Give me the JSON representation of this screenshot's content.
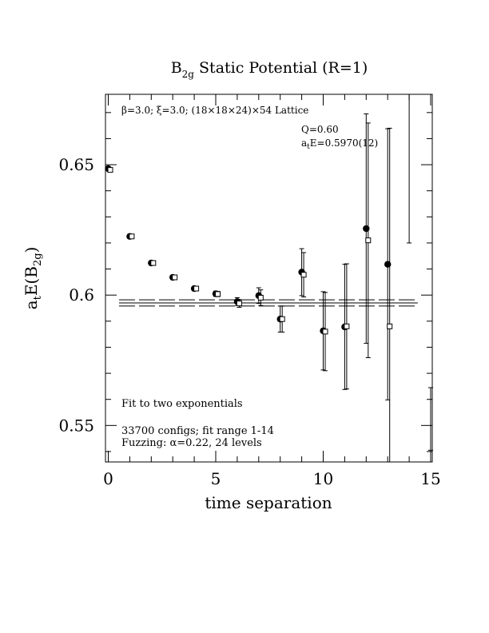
{
  "chart_data": {
    "type": "scatter",
    "title": {
      "main": "B",
      "sub": "2g",
      "rest": " Static Potential (R=1)"
    },
    "xlabel": "time separation",
    "ylabel": {
      "pre": "a",
      "pre_sub": "t",
      "mid": "E(B",
      "mid_sub": "2g",
      "post": ")"
    },
    "xlim": [
      0,
      15
    ],
    "ylim": [
      0.536,
      0.677
    ],
    "x_ticks": [
      0,
      5,
      10,
      15
    ],
    "x_tick_labels": [
      "0",
      "5",
      "10",
      "15"
    ],
    "y_ticks": [
      0.55,
      0.6,
      0.65
    ],
    "y_tick_labels": [
      "0.55",
      "0.6",
      "0.65"
    ],
    "x_minor_step": 1,
    "y_minor_step": 0.01,
    "annotations": {
      "lattice": "β=3.0; ξ=3.0; (18×18×24)×54 Lattice",
      "q": "Q=0.60",
      "energy_pre": "a",
      "energy_sub": "t",
      "energy_post": "E=0.5970(12)",
      "fit": "Fit to two exponentials",
      "configs": "33700 configs; fit range 1-14",
      "fuzzing": "Fuzzing: α=0.22, 24 levels"
    },
    "fit": {
      "value": 0.597,
      "error": 0.0012,
      "x_range": [
        0.5,
        14.4
      ]
    },
    "series": [
      {
        "marker": "filled-circle",
        "points": [
          {
            "x": 0,
            "y": 0.6485,
            "err": 0.0008
          },
          {
            "x": 1,
            "y": 0.6225,
            "err": 0.0008
          },
          {
            "x": 2,
            "y": 0.6123,
            "err": 0.0008
          },
          {
            "x": 3,
            "y": 0.6068,
            "err": 0.0008
          },
          {
            "x": 4,
            "y": 0.6025,
            "err": 0.0008
          },
          {
            "x": 5,
            "y": 0.6005,
            "err": 0.001
          },
          {
            "x": 6,
            "y": 0.5975,
            "err": 0.0015
          },
          {
            "x": 7,
            "y": 0.5998,
            "err": 0.003
          },
          {
            "x": 8,
            "y": 0.5908,
            "err": 0.005
          },
          {
            "x": 9,
            "y": 0.6088,
            "err": 0.009
          },
          {
            "x": 10,
            "y": 0.5863,
            "err": 0.015
          },
          {
            "x": 11,
            "y": 0.5878,
            "err": 0.024
          },
          {
            "x": 12,
            "y": 0.6255,
            "err": 0.044
          },
          {
            "x": 13,
            "y": 0.6118,
            "err": 0.052
          },
          {
            "x": 14,
            "y": 0.65,
            "err": 0.03,
            "no_marker": true
          },
          {
            "x": 15,
            "y": 0.5525,
            "err": 0.012,
            "no_marker": true
          }
        ]
      },
      {
        "marker": "open-square",
        "points": [
          {
            "x": 0,
            "y": 0.648,
            "err": 0.0008
          },
          {
            "x": 1,
            "y": 0.6225,
            "err": 0.0008
          },
          {
            "x": 2,
            "y": 0.6123,
            "err": 0.0008
          },
          {
            "x": 3,
            "y": 0.6068,
            "err": 0.0008
          },
          {
            "x": 4,
            "y": 0.6025,
            "err": 0.0008
          },
          {
            "x": 5,
            "y": 0.6004,
            "err": 0.001
          },
          {
            "x": 6,
            "y": 0.5968,
            "err": 0.0015
          },
          {
            "x": 7,
            "y": 0.599,
            "err": 0.003
          },
          {
            "x": 8,
            "y": 0.5908,
            "err": 0.005
          },
          {
            "x": 9,
            "y": 0.6078,
            "err": 0.0085
          },
          {
            "x": 10,
            "y": 0.586,
            "err": 0.015
          },
          {
            "x": 11,
            "y": 0.588,
            "err": 0.024
          },
          {
            "x": 12,
            "y": 0.621,
            "err": 0.045
          },
          {
            "x": 13,
            "y": 0.588,
            "err": 0.076
          }
        ]
      }
    ]
  }
}
